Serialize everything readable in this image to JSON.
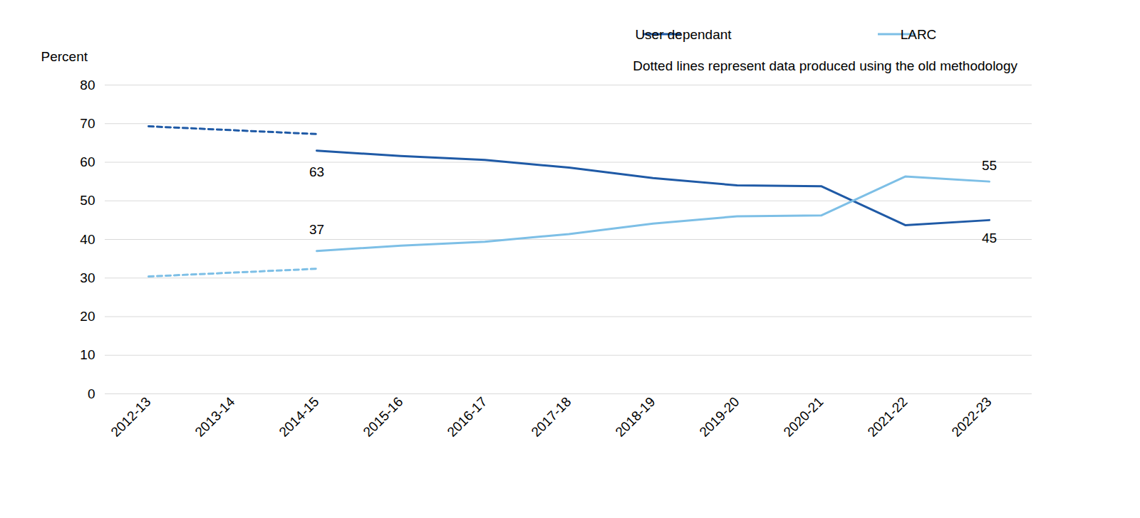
{
  "chart_data": {
    "type": "line",
    "y_label": "Percent",
    "categories": [
      "2012-13",
      "2013-14",
      "2014-15",
      "2015-16",
      "2016-17",
      "2017-18",
      "2018-19",
      "2019-20",
      "2020-21",
      "2021-22",
      "2022-23"
    ],
    "series": [
      {
        "name": "User dependant",
        "color": "#1f5aa6",
        "line_style": "solid",
        "values": [
          null,
          null,
          63.0,
          61.6,
          60.6,
          58.6,
          55.9,
          54.0,
          53.8,
          43.7,
          45.0
        ]
      },
      {
        "name": "LARC",
        "color": "#7dbfe6",
        "line_style": "solid",
        "values": [
          null,
          null,
          37.0,
          38.4,
          39.4,
          41.4,
          44.1,
          46.0,
          46.2,
          56.3,
          55.0
        ]
      },
      {
        "name": "User dependant",
        "color": "#1f5aa6",
        "line_style": "dotted",
        "values": [
          69.3,
          68.3,
          67.3,
          null,
          null,
          null,
          null,
          null,
          null,
          null,
          null
        ]
      },
      {
        "name": "LARC",
        "color": "#7dbfe6",
        "line_style": "dotted",
        "values": [
          30.4,
          31.4,
          32.4,
          null,
          null,
          null,
          null,
          null,
          null,
          null,
          null
        ]
      }
    ],
    "annotations": [
      {
        "text": "Dotted lines represent data produced using the old methodology"
      },
      {
        "x": "2014-15",
        "y": 63,
        "text": "63"
      },
      {
        "x": "2014-15",
        "y": 37,
        "text": "37"
      },
      {
        "x": "2022-23",
        "y": 55,
        "text": "55"
      },
      {
        "x": "2022-23",
        "y": 45,
        "text": "45"
      }
    ],
    "ylim": [
      0,
      80
    ],
    "yticks": [
      0,
      10,
      20,
      30,
      40,
      50,
      60,
      70,
      80
    ],
    "grid": true,
    "legend": "top"
  }
}
